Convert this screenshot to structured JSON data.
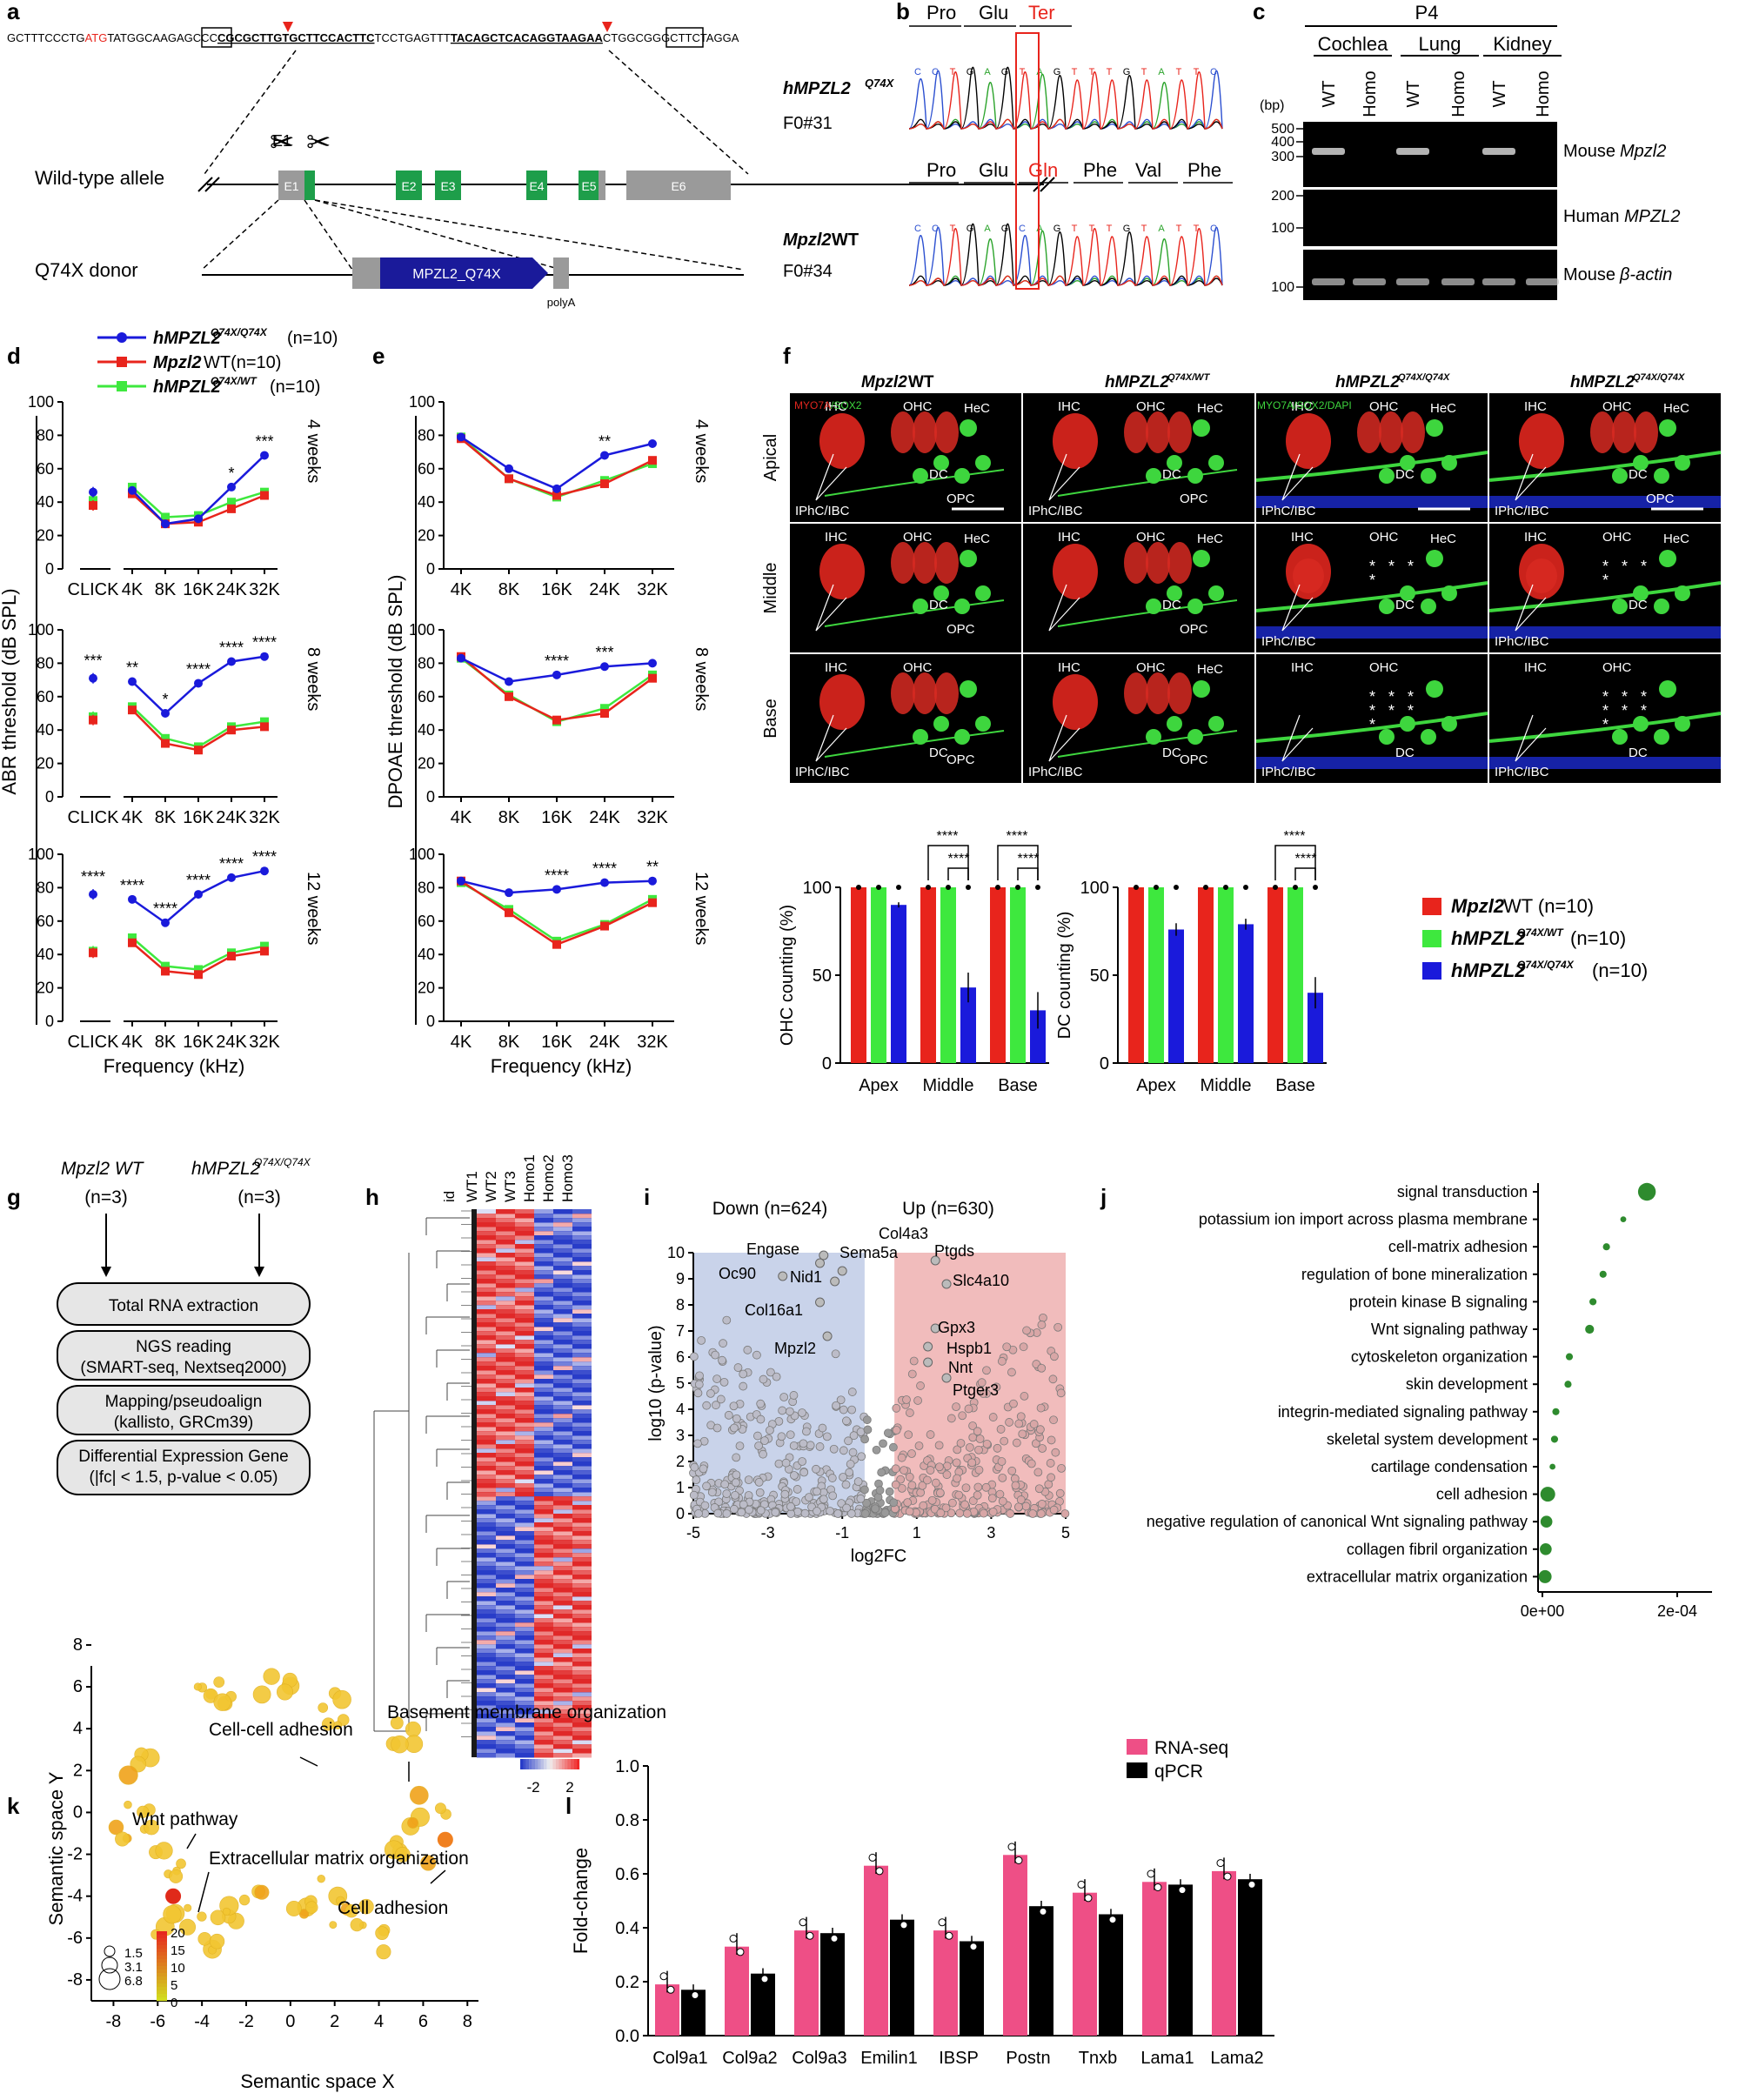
{
  "panels": {
    "a": "a",
    "b": "b",
    "c": "c",
    "d": "d",
    "e": "e",
    "f": "f",
    "g": "g",
    "h": "h",
    "i": "i",
    "j": "j",
    "k": "k",
    "l": "l"
  },
  "a": {
    "sequence": {
      "s1": "GCTTTCCCTG",
      "atg": "ATG",
      "s2": "TATGGCAAGAG",
      "box1": "CCC",
      "s3": "CGCGCTTGTGCTTCCACTTC",
      "s4": "TCCTGAGTTT",
      "s5": "TACAGCTCACAGGTAAGAA",
      "box2": "CTGG",
      "s6": "CGGGCTTCTAGGA"
    },
    "wt_allele": "Wild-type allele",
    "donor": "Q74X donor",
    "exons": [
      "E1",
      "E2",
      "E3",
      "E4",
      "E5",
      "E6"
    ],
    "cassette": "MPZL2_Q74X",
    "polyA": "polyA"
  },
  "b": {
    "top_sample": [
      "hMPZL2",
      "Q74X",
      "F0#31"
    ],
    "bottom_sample": [
      "Mpzl2",
      " WT",
      "F0#34"
    ],
    "top_aa": [
      "Pro",
      "Glu",
      "Ter"
    ],
    "bottom_aa": [
      "Pro",
      "Glu",
      "Gln",
      "Phe",
      "Val",
      "Phe"
    ],
    "top_bases": [
      "C",
      "C",
      "T",
      "G",
      "A",
      "G",
      "T",
      "A",
      "G",
      "T",
      "T",
      "T",
      "G",
      "T",
      "A",
      "T",
      "T",
      "C"
    ],
    "bottom_bases": [
      "C",
      "C",
      "T",
      "G",
      "A",
      "G",
      "C",
      "A",
      "G",
      "T",
      "T",
      "T",
      "G",
      "T",
      "A",
      "T",
      "T",
      "C"
    ]
  },
  "c": {
    "age": "P4",
    "tissues": [
      "Cochlea",
      "Lung",
      "Kidney"
    ],
    "lanes": [
      "WT",
      "Homo",
      "WT",
      "Homo",
      "WT",
      "Homo"
    ],
    "bp": "(bp)",
    "ladder1": [
      "500",
      "400",
      "300"
    ],
    "ladder2": [
      "200",
      "100"
    ],
    "ladder3": [
      "100"
    ],
    "rows": [
      [
        "Mouse ",
        "Mpzl2"
      ],
      [
        "Human ",
        "MPZL2"
      ],
      [
        "Mouse ",
        "β-actin"
      ]
    ]
  },
  "legend_de": [
    {
      "italic": "hMPZL2",
      "sup": "Q74X/Q74X",
      "rest": " (n=10)",
      "color": "#1a1adb"
    },
    {
      "italic": "Mpzl2",
      "sup": "",
      "rest": " WT(n=10)",
      "color": "#e8241c"
    },
    {
      "italic": "hMPZL2",
      "sup": "Q74X/WT",
      "rest": " (n=10)",
      "color": "#3ee83e"
    }
  ],
  "chart_data": [
    {
      "type": "line",
      "panel": "d",
      "subtitle": "4 weeks",
      "ylabel": "ABR threshold (dB SPL)",
      "xlabel": "",
      "ylim": [
        0,
        100
      ],
      "yticks": [
        0,
        20,
        40,
        60,
        80,
        100
      ],
      "click_label": "CLICK",
      "categories": [
        "4K",
        "8K",
        "16K",
        "24K",
        "32K"
      ],
      "series": [
        {
          "name": "hMPZL2 Q74X/Q74X (n=10)",
          "click": 46,
          "values": [
            47,
            27,
            30,
            49,
            68
          ]
        },
        {
          "name": "Mpzl2 WT(n=10)",
          "click": 38,
          "values": [
            45,
            27,
            28,
            36,
            44
          ]
        },
        {
          "name": "hMPZL2 Q74X/WT (n=10)",
          "click": 41,
          "values": [
            49,
            31,
            32,
            40,
            46
          ]
        }
      ],
      "click_sig": "",
      "sig": [
        "",
        "",
        "",
        "*",
        "***"
      ]
    },
    {
      "type": "line",
      "panel": "d",
      "subtitle": "8 weeks",
      "ylabel": "ABR threshold (dB SPL)",
      "xlabel": "",
      "ylim": [
        0,
        100
      ],
      "yticks": [
        0,
        20,
        40,
        60,
        80,
        100
      ],
      "click_label": "CLICK",
      "categories": [
        "4K",
        "8K",
        "16K",
        "24K",
        "32K"
      ],
      "series": [
        {
          "name": "hMPZL2 Q74X/Q74X (n=10)",
          "click": 71,
          "values": [
            69,
            50,
            68,
            81,
            84
          ]
        },
        {
          "name": "Mpzl2 WT(n=10)",
          "click": 46,
          "values": [
            52,
            32,
            28,
            40,
            42
          ]
        },
        {
          "name": "hMPZL2 Q74X/WT (n=10)",
          "click": 48,
          "values": [
            54,
            35,
            30,
            42,
            45
          ]
        }
      ],
      "click_sig": "***",
      "sig": [
        "**",
        "*",
        "****",
        "****",
        "****"
      ]
    },
    {
      "type": "line",
      "panel": "d",
      "subtitle": "12 weeks",
      "ylabel": "ABR threshold (dB SPL)",
      "xlabel": "Frequency (kHz)",
      "ylim": [
        0,
        100
      ],
      "yticks": [
        0,
        20,
        40,
        60,
        80,
        100
      ],
      "click_label": "CLICK",
      "categories": [
        "4K",
        "8K",
        "16K",
        "24K",
        "32K"
      ],
      "series": [
        {
          "name": "hMPZL2 Q74X/Q74X (n=10)",
          "click": 76,
          "values": [
            73,
            59,
            76,
            86,
            90
          ]
        },
        {
          "name": "Mpzl2 WT(n=10)",
          "click": 41,
          "values": [
            47,
            30,
            28,
            39,
            42
          ]
        },
        {
          "name": "hMPZL2 Q74X/WT (n=10)",
          "click": 42,
          "values": [
            50,
            33,
            31,
            41,
            45
          ]
        }
      ],
      "click_sig": "****",
      "sig": [
        "****",
        "****",
        "****",
        "****",
        "****"
      ]
    },
    {
      "type": "line",
      "panel": "e",
      "subtitle": "4 weeks",
      "ylabel": "DPOAE threshold (dB SPL)",
      "xlabel": "",
      "ylim": [
        0,
        100
      ],
      "yticks": [
        0,
        20,
        40,
        60,
        80,
        100
      ],
      "categories": [
        "4K",
        "8K",
        "16K",
        "24K",
        "32K"
      ],
      "series": [
        {
          "name": "hMPZL2 Q74X/Q74X (n=10)",
          "values": [
            79,
            60,
            48,
            68,
            75
          ]
        },
        {
          "name": "Mpzl2 WT(n=10)",
          "values": [
            78,
            54,
            44,
            51,
            65
          ]
        },
        {
          "name": "hMPZL2 Q74X/WT (n=10)",
          "values": [
            79,
            54,
            43,
            53,
            63
          ]
        }
      ],
      "sig": [
        "",
        "",
        "",
        "**",
        ""
      ]
    },
    {
      "type": "line",
      "panel": "e",
      "subtitle": "8 weeks",
      "ylabel": "DPOAE threshold (dB SPL)",
      "xlabel": "",
      "ylim": [
        0,
        100
      ],
      "yticks": [
        0,
        20,
        40,
        60,
        80,
        100
      ],
      "categories": [
        "4K",
        "8K",
        "16K",
        "24K",
        "32K"
      ],
      "series": [
        {
          "name": "hMPZL2 Q74X/Q74X (n=10)",
          "values": [
            83,
            69,
            73,
            78,
            80
          ]
        },
        {
          "name": "Mpzl2 WT(n=10)",
          "values": [
            84,
            60,
            46,
            50,
            71
          ]
        },
        {
          "name": "hMPZL2 Q74X/WT (n=10)",
          "values": [
            83,
            61,
            45,
            53,
            73
          ]
        }
      ],
      "sig": [
        "",
        "",
        "****",
        "***",
        ""
      ]
    },
    {
      "type": "line",
      "panel": "e",
      "subtitle": "12 weeks",
      "ylabel": "DPOAE threshold (dB SPL)",
      "xlabel": "Frequency (kHz)",
      "ylim": [
        0,
        100
      ],
      "yticks": [
        0,
        20,
        40,
        60,
        80,
        100
      ],
      "categories": [
        "4K",
        "8K",
        "16K",
        "24K",
        "32K"
      ],
      "series": [
        {
          "name": "hMPZL2 Q74X/Q74X (n=10)",
          "values": [
            84,
            77,
            79,
            83,
            84
          ]
        },
        {
          "name": "Mpzl2 WT(n=10)",
          "values": [
            84,
            65,
            46,
            57,
            71
          ]
        },
        {
          "name": "hMPZL2 Q74X/WT (n=10)",
          "values": [
            83,
            67,
            48,
            58,
            73
          ]
        }
      ],
      "sig": [
        "",
        "",
        "****",
        "****",
        "**"
      ]
    },
    {
      "type": "bar",
      "panel": "f",
      "ylabel": "OHC counting (%)",
      "ylim": [
        0,
        100
      ],
      "yticks": [
        0,
        50,
        100
      ],
      "categories": [
        "Apex",
        "Middle",
        "Base"
      ],
      "series": [
        {
          "name": "Mpzl2 WT (n=10)",
          "values": [
            100,
            100,
            100
          ]
        },
        {
          "name": "hMPZL2 Q74X/WT (n=10)",
          "values": [
            100,
            100,
            100
          ]
        },
        {
          "name": "hMPZL2 Q74X/Q74X (n=10)",
          "values": [
            90,
            43,
            30
          ]
        }
      ],
      "sig": [
        "",
        "****",
        "****"
      ]
    },
    {
      "type": "bar",
      "panel": "f",
      "ylabel": "DC counting (%)",
      "ylim": [
        0,
        100
      ],
      "yticks": [
        0,
        50,
        100
      ],
      "categories": [
        "Apex",
        "Middle",
        "Base"
      ],
      "series": [
        {
          "name": "Mpzl2 WT (n=10)",
          "values": [
            100,
            100,
            100
          ]
        },
        {
          "name": "hMPZL2 Q74X/WT (n=10)",
          "values": [
            100,
            100,
            100
          ]
        },
        {
          "name": "hMPZL2 Q74X/Q74X (n=10)",
          "values": [
            76,
            79,
            40
          ]
        }
      ],
      "sig": [
        "",
        "",
        "****"
      ]
    },
    {
      "type": "scatter",
      "panel": "i",
      "title_down": "Down (n=624)",
      "title_up": "Up (n=630)",
      "xlabel": "log2FC",
      "ylabel": "log10 (p-value)",
      "xlim": [
        -5,
        5
      ],
      "ylim": [
        0,
        10
      ],
      "xticks": [
        -5,
        -3,
        -1,
        1,
        3,
        5
      ],
      "yticks": [
        0,
        1,
        2,
        3,
        4,
        5,
        6,
        7,
        8,
        9,
        10
      ],
      "labeled_genes": [
        {
          "name": "Col4a3",
          "x": -1.5,
          "y": 9.9
        },
        {
          "name": "Engase",
          "x": -1.6,
          "y": 9.6
        },
        {
          "name": "Sema5a",
          "x": -1.0,
          "y": 9.3
        },
        {
          "name": "Oc90",
          "x": -2.6,
          "y": 9.1
        },
        {
          "name": "Nid1",
          "x": -1.2,
          "y": 8.9
        },
        {
          "name": "Col16a1",
          "x": -1.6,
          "y": 8.1
        },
        {
          "name": "Mpzl2",
          "x": -1.4,
          "y": 6.8
        },
        {
          "name": "Ptgds",
          "x": 1.5,
          "y": 9.7
        },
        {
          "name": "Slc4a10",
          "x": 1.8,
          "y": 8.8
        },
        {
          "name": "Gpx3",
          "x": 1.5,
          "y": 7.1
        },
        {
          "name": "Hspb1",
          "x": 1.3,
          "y": 6.4
        },
        {
          "name": "Nnt",
          "x": 1.3,
          "y": 5.8
        },
        {
          "name": "Ptger3",
          "x": 1.8,
          "y": 5.2
        }
      ]
    },
    {
      "type": "scatter",
      "panel": "j",
      "xticks": [
        "0e+00",
        "2e-04"
      ],
      "terms": [
        "signal transduction",
        "potassium ion import across plasma membrane",
        "cell-matrix adhesion",
        "regulation of bone mineralization",
        "protein kinase B signaling",
        "Wnt signaling pathway",
        "cytoskeleton organization",
        "skin development",
        "integrin-mediated signaling pathway",
        "skeletal system development",
        "cartilage condensation",
        "cell adhesion",
        "negative regulation of canonical Wnt signaling pathway",
        "collagen fibril organization",
        "extracellular matrix organization"
      ],
      "values": [
        0.000155,
        0.00012,
        9.5e-05,
        9e-05,
        7.5e-05,
        7e-05,
        4e-05,
        3.8e-05,
        2e-05,
        1.8e-05,
        1.5e-05,
        8e-06,
        6e-06,
        5e-06,
        4e-06
      ],
      "sizes": [
        3,
        1,
        1.2,
        1.2,
        1.2,
        1.5,
        1.2,
        1.2,
        1.2,
        1.2,
        1,
        2.5,
        2,
        2,
        2.2
      ]
    },
    {
      "type": "scatter",
      "panel": "k",
      "xlabel": "Semantic space X",
      "ylabel": "Semantic space Y",
      "xlim": [
        -9,
        8.5
      ],
      "ylim": [
        -9,
        7
      ],
      "xticks": [
        -8,
        -6,
        -4,
        -2,
        0,
        2,
        4,
        6,
        8
      ],
      "yticks": [
        -8,
        -6,
        -4,
        -2,
        0,
        2,
        4,
        6,
        8
      ],
      "annotations": [
        "Cell-cell adhesion",
        "Basement membrane organization",
        "Wnt pathway",
        "Extracellular matrix organization",
        "Cell adhesion"
      ],
      "size_legend": [
        "1.5",
        "3.1",
        "6.8"
      ],
      "color_legend": [
        "20",
        "15",
        "10",
        "5",
        "0"
      ]
    },
    {
      "type": "bar",
      "panel": "l",
      "ylabel": "Fold-change",
      "ylim": [
        0,
        1
      ],
      "yticks": [
        "0.0",
        "0.2",
        "0.4",
        "0.6",
        "0.8",
        "1.0"
      ],
      "categories": [
        "Col9a1",
        "Col9a2",
        "Col9a3",
        "Emilin1",
        "IBSP",
        "Postn",
        "Tnxb",
        "Lama1",
        "Lama2"
      ],
      "series": [
        {
          "name": "RNA-seq",
          "values": [
            0.19,
            0.33,
            0.39,
            0.63,
            0.39,
            0.67,
            0.53,
            0.57,
            0.61
          ]
        },
        {
          "name": "qPCR",
          "values": [
            0.17,
            0.23,
            0.38,
            0.43,
            0.35,
            0.48,
            0.45,
            0.56,
            0.58
          ]
        }
      ]
    }
  ],
  "d_xlabel": "Frequency (kHz)",
  "e_xlabel": "Frequency (kHz)",
  "f": {
    "cols": [
      [
        "Mpzl2",
        " WT",
        ""
      ],
      [
        "hMPZL2",
        "",
        "Q74X/WT"
      ],
      [
        "hMPZL2",
        "",
        "Q74X/Q74X"
      ],
      [
        "hMPZL2",
        "",
        "Q74X/Q74X"
      ]
    ],
    "rows": [
      "Apical",
      "Middle",
      "Base"
    ],
    "stain1": "MYO7A",
    "stain2": "/SOX2",
    "stain3": "MYO7A/SOX2/DAPI",
    "labels": {
      "ihc": "IHC",
      "ohc": "OHC",
      "hec": "HeC",
      "dc": "DC",
      "opc": "OPC",
      "iphc": "IPhC/IBC"
    },
    "legend": [
      [
        "Mpzl2",
        " WT (n=10)",
        ""
      ],
      [
        "hMPZL2",
        " (n=10)",
        "Q74X/WT"
      ],
      [
        "hMPZL2",
        " (n=10)",
        "Q74X/Q74X"
      ]
    ]
  },
  "g": {
    "wt": "Mpzl2 WT",
    "mut": "hMPZL2",
    "mut_sup": "Q74X/Q74X",
    "n": "(n=3)",
    "box1": "Total RNA extraction",
    "box2a": "NGS reading",
    "box2b": "(SMART-seq, Nextseq2000)",
    "box3a": "Mapping/pseudoalign",
    "box3b": "(kallisto, GRCm39)",
    "box4a": "Differential Expression Gene",
    "box4b": "(|fc| < 1.5, p-value < 0.05)"
  },
  "h": {
    "cols": [
      "id",
      "WT1",
      "WT2",
      "WT3",
      "Homo1",
      "Homo2",
      "Homo3"
    ],
    "scale": [
      "-2",
      "2"
    ]
  },
  "l_legend": [
    "RNA-seq",
    "qPCR"
  ],
  "colors": {
    "blue": "#1a1adb",
    "red": "#e8241c",
    "green": "#3ee83e",
    "pink": "#ee4f86",
    "gray": "#9a9a9a",
    "jgreen": "#2e8b2e"
  }
}
